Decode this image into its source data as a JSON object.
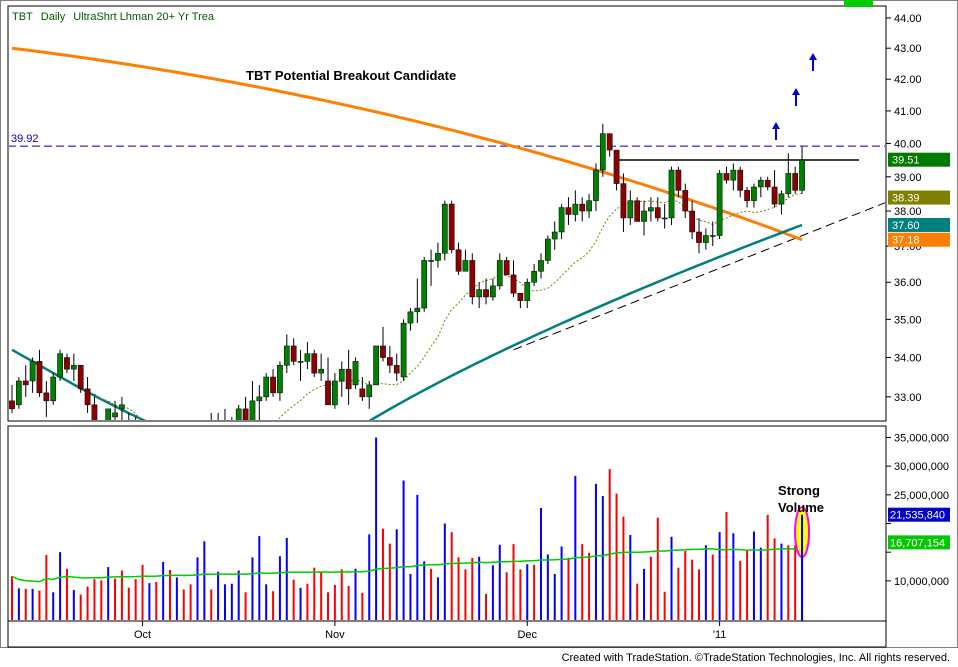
{
  "header": {
    "symbol": "TBT",
    "interval": "Daily",
    "name": "UltraShrt Lhman 20+ Yr Trea"
  },
  "annotations": {
    "title": "TBT Potential Breakout Candidate",
    "resistance_label": "39.92",
    "volume_note_line1": "Strong",
    "volume_note_line2": "Volume"
  },
  "price_tags": [
    {
      "label": "39.51",
      "value": 39.51,
      "color": "#007a00"
    },
    {
      "label": "38.39",
      "value": 38.39,
      "color": "#7f7f00"
    },
    {
      "label": "37.60",
      "value": 37.6,
      "color": "#007f7f"
    },
    {
      "label": "37.18",
      "value": 37.18,
      "color": "#ff7f00"
    }
  ],
  "volume_tags": [
    {
      "label": "21,535,840",
      "value": 21535840,
      "color": "#0000c8"
    },
    {
      "label": "16,707,154",
      "value": 16707154,
      "color": "#00c800"
    }
  ],
  "credit": "Created with TradeStation. ©TradeStation Technologies, Inc. All rights reserved.",
  "colors": {
    "up_candle": "#008000",
    "down_candle": "#8b0000",
    "ma_long": "#ff7f00",
    "ma_mid": "#007f7f",
    "ma_short": "#7f7f00",
    "volume_up": "#0000ff",
    "volume_down": "#ff0000",
    "volume_avg": "#00cc00",
    "resistance": "#0000cc",
    "arrow": "#0000cc",
    "highlight": "#ffff00",
    "highlight_ring": "#ff00ff"
  },
  "chart_data": {
    "type": "candlestick",
    "price_axis": {
      "ticks": [
        33.0,
        34.0,
        35.0,
        36.0,
        37.0,
        38.0,
        39.0,
        40.0,
        41.0,
        42.0,
        43.0,
        44.0
      ],
      "tick_labels": [
        "33.00",
        "34.00",
        "35.00",
        "36.00",
        "37.00",
        "38.00",
        "39.00",
        "40.00",
        "41.00",
        "42.00",
        "43.00",
        "44.00"
      ],
      "ylim": [
        32.4,
        44.4
      ],
      "scale": "log"
    },
    "volume_axis": {
      "ticks": [
        10000000,
        15000000,
        20000000,
        25000000,
        30000000,
        35000000
      ],
      "tick_labels": [
        "10,000,000",
        "",
        "",
        "25,000,000",
        "30,000,000",
        "35,000,000"
      ],
      "ylim": [
        3000000,
        37000000
      ]
    },
    "x_labels": [
      "Oct",
      "Nov",
      "Dec",
      "'11"
    ],
    "x_label_bar_index": [
      19,
      47,
      75,
      103
    ],
    "bars": [
      [
        32.9,
        33.3,
        32.6,
        32.7,
        10.8,
        "d"
      ],
      [
        32.8,
        33.5,
        32.7,
        33.4,
        8.7,
        "u"
      ],
      [
        33.4,
        33.8,
        33.0,
        33.3,
        8.6,
        "d"
      ],
      [
        33.4,
        34.0,
        33.1,
        33.9,
        8.6,
        "u"
      ],
      [
        33.9,
        34.2,
        33.0,
        33.1,
        8.3,
        "d"
      ],
      [
        33.1,
        33.4,
        32.5,
        32.9,
        14.5,
        "d"
      ],
      [
        32.9,
        33.6,
        32.8,
        33.5,
        8.0,
        "u"
      ],
      [
        33.5,
        34.2,
        33.4,
        34.1,
        15.0,
        "u"
      ],
      [
        34.0,
        34.1,
        33.6,
        33.7,
        12.1,
        "d"
      ],
      [
        33.7,
        34.1,
        33.4,
        33.8,
        8.4,
        "u"
      ],
      [
        33.8,
        33.8,
        33.1,
        33.2,
        7.6,
        "d"
      ],
      [
        33.2,
        33.5,
        32.6,
        32.8,
        9.0,
        "d"
      ],
      [
        32.8,
        33.0,
        32.1,
        32.2,
        10.3,
        "d"
      ],
      [
        32.2,
        32.4,
        31.6,
        31.9,
        10.1,
        "d"
      ],
      [
        31.9,
        32.7,
        31.6,
        32.7,
        12.4,
        "u"
      ],
      [
        32.5,
        32.9,
        32.1,
        32.6,
        10.4,
        "d"
      ],
      [
        32.7,
        33.0,
        32.4,
        32.8,
        11.8,
        "d"
      ],
      [
        32.3,
        32.6,
        32.0,
        32.2,
        8.8,
        "d"
      ],
      [
        32.2,
        32.5,
        31.6,
        31.9,
        10.3,
        "d"
      ],
      [
        31.9,
        32.2,
        31.5,
        31.7,
        12.8,
        "d"
      ],
      [
        31.7,
        31.9,
        31.2,
        31.8,
        9.6,
        "u"
      ],
      [
        31.8,
        32.1,
        31.3,
        31.5,
        9.8,
        "d"
      ],
      [
        31.5,
        31.8,
        31.1,
        31.3,
        13.3,
        "u"
      ],
      [
        31.3,
        31.5,
        30.8,
        31.1,
        11.9,
        "d"
      ],
      [
        31.1,
        31.4,
        30.7,
        31.3,
        10.6,
        "u"
      ],
      [
        31.3,
        31.5,
        30.9,
        31.1,
        8.5,
        "d"
      ],
      [
        31.1,
        31.3,
        30.4,
        30.6,
        9.4,
        "d"
      ],
      [
        31.0,
        31.7,
        30.7,
        31.6,
        14.1,
        "u"
      ],
      [
        31.6,
        32.4,
        31.4,
        32.3,
        16.9,
        "u"
      ],
      [
        32.2,
        32.6,
        32.0,
        32.3,
        8.5,
        "d"
      ],
      [
        32.3,
        32.6,
        32.1,
        32.4,
        11.6,
        "u"
      ],
      [
        32.4,
        32.7,
        32.0,
        32.1,
        9.4,
        "u"
      ],
      [
        32.1,
        32.5,
        31.7,
        32.3,
        9.5,
        "u"
      ],
      [
        32.3,
        32.8,
        32.1,
        32.7,
        11.8,
        "u"
      ],
      [
        32.7,
        33.0,
        32.2,
        32.4,
        8.0,
        "d"
      ],
      [
        32.4,
        33.4,
        32.3,
        32.9,
        14.1,
        "u"
      ],
      [
        32.9,
        33.3,
        32.4,
        33.0,
        17.8,
        "u"
      ],
      [
        33.0,
        33.6,
        32.9,
        33.5,
        9.4,
        "u"
      ],
      [
        33.5,
        33.7,
        33.0,
        33.1,
        8.2,
        "d"
      ],
      [
        33.1,
        33.9,
        32.9,
        33.8,
        14.3,
        "u"
      ],
      [
        33.8,
        34.6,
        33.6,
        34.3,
        17.5,
        "u"
      ],
      [
        34.3,
        34.5,
        33.8,
        33.9,
        10.2,
        "d"
      ],
      [
        33.9,
        34.2,
        33.4,
        33.9,
        8.8,
        "u"
      ],
      [
        33.9,
        34.4,
        33.7,
        34.1,
        9.5,
        "d"
      ],
      [
        34.1,
        34.2,
        33.5,
        33.6,
        12.3,
        "d"
      ],
      [
        33.6,
        34.1,
        33.4,
        33.7,
        11.6,
        "d"
      ],
      [
        33.4,
        34.0,
        32.8,
        32.8,
        8.0,
        "d"
      ],
      [
        32.8,
        33.6,
        32.7,
        33.4,
        9.3,
        "d"
      ],
      [
        33.4,
        33.9,
        33.0,
        33.7,
        12.0,
        "d"
      ],
      [
        33.7,
        34.2,
        32.8,
        33.2,
        9.1,
        "d"
      ],
      [
        33.3,
        34.0,
        33.2,
        33.9,
        12.1,
        "u"
      ],
      [
        33.2,
        33.5,
        32.9,
        33.0,
        7.9,
        "d"
      ],
      [
        33.0,
        33.4,
        32.7,
        33.3,
        18.1,
        "u"
      ],
      [
        33.3,
        34.3,
        33.3,
        34.3,
        35.0,
        "u"
      ],
      [
        34.3,
        34.8,
        33.9,
        34.0,
        19.1,
        "d"
      ],
      [
        34.0,
        34.3,
        33.6,
        33.8,
        16.5,
        "d"
      ],
      [
        33.8,
        34.1,
        33.4,
        33.6,
        19.0,
        "u"
      ],
      [
        33.5,
        35.0,
        33.4,
        34.9,
        27.5,
        "u"
      ],
      [
        34.9,
        35.3,
        34.7,
        35.2,
        11.2,
        "u"
      ],
      [
        35.2,
        36.1,
        34.9,
        35.3,
        25.0,
        "u"
      ],
      [
        35.3,
        36.7,
        35.2,
        36.6,
        13.4,
        "u"
      ],
      [
        36.6,
        36.9,
        35.9,
        36.6,
        12.1,
        "d"
      ],
      [
        36.6,
        37.1,
        36.4,
        36.8,
        10.6,
        "u"
      ],
      [
        36.8,
        38.3,
        36.6,
        38.2,
        20.0,
        "u"
      ],
      [
        38.2,
        38.3,
        36.8,
        36.9,
        18.5,
        "d"
      ],
      [
        36.9,
        37.1,
        36.2,
        36.3,
        14.1,
        "d"
      ],
      [
        36.3,
        36.9,
        36.3,
        36.6,
        12.0,
        "d"
      ],
      [
        36.6,
        36.8,
        35.4,
        35.6,
        14.0,
        "d"
      ],
      [
        35.6,
        36.0,
        35.3,
        35.8,
        14.2,
        "u"
      ],
      [
        35.8,
        36.1,
        35.4,
        35.6,
        7.7,
        "d"
      ],
      [
        35.6,
        36.1,
        35.5,
        35.9,
        12.7,
        "u"
      ],
      [
        35.9,
        36.8,
        35.8,
        36.6,
        16.3,
        "u"
      ],
      [
        36.6,
        36.7,
        36.2,
        36.2,
        11.5,
        "d"
      ],
      [
        36.2,
        36.6,
        35.6,
        35.7,
        16.4,
        "d"
      ],
      [
        35.7,
        35.7,
        35.3,
        35.5,
        12.0,
        "d"
      ],
      [
        35.5,
        36.1,
        35.3,
        36.0,
        12.9,
        "u"
      ],
      [
        36.0,
        36.5,
        35.9,
        36.3,
        12.8,
        "d"
      ],
      [
        36.3,
        36.8,
        36.1,
        36.6,
        22.7,
        "u"
      ],
      [
        36.6,
        37.3,
        36.5,
        37.2,
        14.6,
        "u"
      ],
      [
        37.2,
        37.7,
        36.9,
        37.4,
        11.2,
        "u"
      ],
      [
        37.4,
        38.2,
        37.2,
        38.1,
        16.0,
        "u"
      ],
      [
        38.1,
        38.4,
        37.6,
        37.9,
        14.0,
        "d"
      ],
      [
        37.9,
        38.6,
        37.7,
        38.2,
        28.3,
        "u"
      ],
      [
        38.2,
        38.4,
        37.7,
        38.0,
        16.4,
        "d"
      ],
      [
        38.0,
        38.5,
        37.8,
        38.3,
        14.9,
        "d"
      ],
      [
        38.3,
        39.4,
        38.0,
        39.2,
        26.9,
        "u"
      ],
      [
        39.2,
        40.6,
        39.0,
        40.3,
        24.8,
        "u"
      ],
      [
        40.3,
        40.3,
        39.6,
        39.8,
        29.5,
        "d"
      ],
      [
        39.8,
        39.8,
        38.6,
        38.8,
        25.2,
        "d"
      ],
      [
        38.8,
        39.1,
        37.4,
        37.8,
        21.2,
        "d"
      ],
      [
        37.8,
        38.6,
        37.6,
        38.3,
        18.0,
        "u"
      ],
      [
        38.3,
        38.4,
        37.7,
        37.7,
        9.5,
        "d"
      ],
      [
        37.7,
        38.3,
        37.3,
        38.0,
        12.1,
        "u"
      ],
      [
        38.0,
        38.4,
        37.7,
        38.1,
        14.2,
        "d"
      ],
      [
        38.1,
        38.4,
        37.7,
        37.8,
        21.0,
        "d"
      ],
      [
        37.8,
        38.2,
        37.5,
        37.8,
        8.1,
        "d"
      ],
      [
        37.8,
        39.3,
        37.6,
        39.2,
        17.7,
        "u"
      ],
      [
        39.2,
        39.3,
        38.4,
        38.6,
        12.3,
        "d"
      ],
      [
        38.6,
        38.8,
        37.8,
        38.0,
        15.2,
        "d"
      ],
      [
        38.0,
        38.3,
        37.2,
        37.4,
        13.7,
        "d"
      ],
      [
        37.4,
        37.8,
        36.8,
        37.1,
        12.0,
        "d"
      ],
      [
        37.1,
        37.5,
        36.9,
        37.3,
        16.2,
        "u"
      ],
      [
        37.3,
        37.7,
        37.0,
        37.3,
        14.6,
        "d"
      ],
      [
        37.3,
        39.2,
        37.2,
        39.1,
        18.5,
        "u"
      ],
      [
        39.1,
        39.3,
        38.8,
        38.9,
        22.0,
        "d"
      ],
      [
        38.9,
        39.4,
        38.6,
        39.2,
        18.3,
        "u"
      ],
      [
        39.2,
        39.3,
        38.4,
        38.6,
        13.5,
        "d"
      ],
      [
        38.6,
        38.7,
        38.1,
        38.3,
        15.3,
        "d"
      ],
      [
        38.3,
        38.8,
        38.1,
        38.7,
        18.6,
        "u"
      ],
      [
        38.7,
        39.0,
        38.4,
        38.9,
        15.8,
        "u"
      ],
      [
        38.9,
        39.0,
        38.6,
        38.7,
        21.5,
        "d"
      ],
      [
        38.7,
        39.2,
        38.1,
        38.2,
        17.4,
        "d"
      ],
      [
        38.2,
        38.6,
        37.9,
        38.5,
        16.5,
        "u"
      ],
      [
        38.5,
        39.7,
        38.4,
        39.1,
        16.2,
        "d"
      ],
      [
        39.1,
        39.3,
        38.5,
        38.6,
        16.2,
        "d"
      ],
      [
        38.6,
        39.9,
        38.5,
        39.5,
        21.5,
        "u"
      ]
    ],
    "volume_unit": "millions",
    "ma_long_range": [
      43.0,
      37.18
    ],
    "ma_mid_range": [
      34.2,
      37.6
    ],
    "resistance_level": 39.92,
    "consolidation_level": 39.5
  }
}
